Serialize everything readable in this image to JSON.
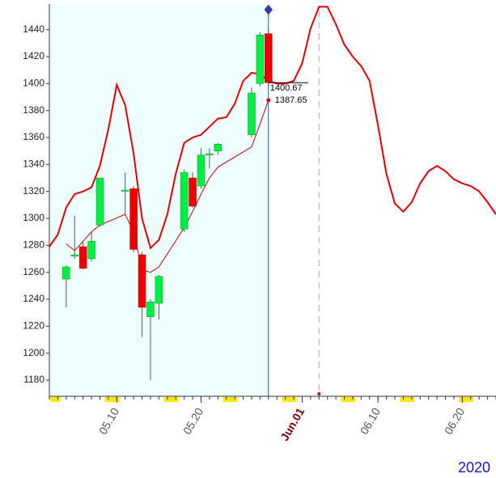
{
  "chart_data": {
    "type": "candlestick",
    "year_label": "2020",
    "xlim": [
      "05.02",
      "06.24"
    ],
    "xticks": [
      "05.10",
      "05.20",
      {
        "value": "06.01",
        "label": "Jun.01"
      },
      "06.10",
      "06.20"
    ],
    "ylim": [
      1168,
      1459
    ],
    "yticks": [
      1180,
      1200,
      1220,
      1240,
      1260,
      1280,
      1300,
      1320,
      1340,
      1360,
      1380,
      1400,
      1420,
      1440
    ],
    "candles": {
      "x": [
        "05.04",
        "05.05",
        "05.06",
        "05.07",
        "05.08",
        "05.11",
        "05.12",
        "05.13",
        "05.14",
        "05.15",
        "05.18",
        "05.19",
        "05.20",
        "05.21",
        "05.22",
        "05.26",
        "05.27",
        "05.28"
      ],
      "open": [
        1255,
        1272,
        1279,
        1270,
        1295,
        1321,
        1322,
        1273,
        1227,
        1237,
        1292,
        1330,
        1324,
        1347,
        1350,
        1362,
        1400,
        1437
      ],
      "high": [
        1265,
        1302,
        1283,
        1290,
        1330,
        1334,
        1324,
        1275,
        1240,
        1258,
        1336,
        1334,
        1352,
        1352,
        1356,
        1397,
        1438,
        1440
      ],
      "low": [
        1234,
        1270,
        1262,
        1268,
        1294,
        1303,
        1275,
        1212,
        1180,
        1225,
        1290,
        1308,
        1322,
        1337,
        1347,
        1360,
        1398,
        1398
      ],
      "close": [
        1264,
        1273,
        1263,
        1283,
        1330,
        1321,
        1277,
        1234,
        1238,
        1257,
        1334,
        1309,
        1347,
        1348,
        1355,
        1393,
        1436,
        1400.67
      ],
      "up_color": "#00ee44",
      "down_color": "#ee0000"
    },
    "series": [
      {
        "color": "#e00000",
        "width": 2,
        "x": [
          "05.02",
          "05.03",
          "05.04",
          "05.05",
          "05.06",
          "05.07",
          "05.08",
          "05.09",
          "05.10",
          "05.11",
          "05.12",
          "05.13",
          "05.14",
          "05.15",
          "05.16",
          "05.17",
          "05.18",
          "05.19",
          "05.20",
          "05.21",
          "05.22",
          "05.23",
          "05.24",
          "05.25",
          "05.26",
          "05.27",
          "05.28",
          "05.29",
          "05.30",
          "05.31",
          "06.01",
          "06.02",
          "06.03",
          "06.04",
          "06.05",
          "06.06",
          "06.07",
          "06.08",
          "06.09",
          "06.10",
          "06.11",
          "06.12",
          "06.13",
          "06.14",
          "06.15",
          "06.16",
          "06.17",
          "06.18",
          "06.19",
          "06.20",
          "06.21",
          "06.22",
          "06.23",
          "06.24"
        ],
        "values": [
          1279,
          1288,
          1308,
          1318,
          1320,
          1323,
          1339,
          1366,
          1399,
          1384,
          1348,
          1300,
          1278,
          1284,
          1303,
          1333,
          1356,
          1360,
          1362,
          1368,
          1374,
          1375,
          1385,
          1402,
          1408,
          1407,
          1402,
          1400,
          1400,
          1402,
          1415,
          1441,
          1457,
          1457,
          1444,
          1429,
          1420,
          1413,
          1402,
          1369,
          1333,
          1311,
          1305,
          1312,
          1326,
          1335,
          1339,
          1335,
          1329,
          1326,
          1324,
          1320,
          1312,
          1303
        ]
      },
      {
        "color": "#c00000",
        "width": 1,
        "x": [
          "05.04",
          "05.05",
          "05.06",
          "05.07",
          "05.08",
          "05.11",
          "05.12",
          "05.13",
          "05.14",
          "05.15",
          "05.18",
          "05.19",
          "05.20",
          "05.21",
          "05.22",
          "05.26",
          "05.27",
          "05.28"
        ],
        "values": [
          1281,
          1276,
          1283,
          1290,
          1295,
          1303,
          1290,
          1262,
          1260,
          1264,
          1293,
          1305,
          1318,
          1330,
          1338,
          1353,
          1370,
          1387.65
        ]
      }
    ],
    "annotations": [
      1400.67,
      1387.65
    ]
  }
}
